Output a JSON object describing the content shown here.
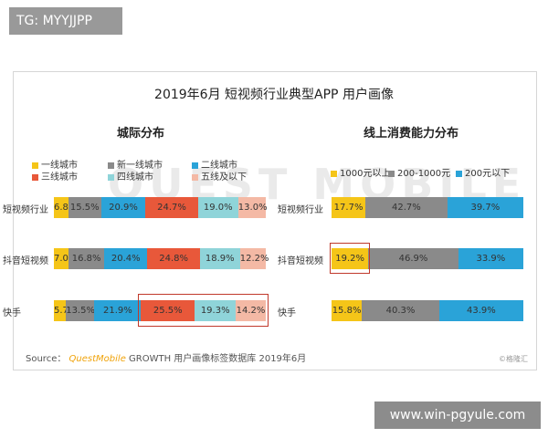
{
  "badge_text": "TG: MYYJJPP",
  "main_title": "2019年6月 短视频行业典型APP 用户画像",
  "watermark": "QUEST MOBILE",
  "source": {
    "label": "Source：",
    "brand": "QuestMobile",
    "rest": "GROWTH 用户画像标签数据库 2019年6月"
  },
  "credit": "©格隆汇",
  "footer_url": "www.win-pgyule.com",
  "colors": {
    "yellow": "#f5c518",
    "gray": "#8a8a8a",
    "blue": "#2aa3d8",
    "red": "#e8583a",
    "teal": "#8fd4d9",
    "pink": "#f4b9a5"
  },
  "chart_data": [
    {
      "type": "bar",
      "stacked": true,
      "orientation": "horizontal",
      "title": "城际分布",
      "categories": [
        "短视频行业",
        "抖音短视频",
        "快手"
      ],
      "series": [
        {
          "name": "一线城市",
          "color": "#f5c518",
          "values": [
            6.8,
            7.0,
            5.7
          ],
          "labels": [
            "6.8%",
            "7.0%",
            "5.7%"
          ]
        },
        {
          "name": "新一线城市",
          "color": "#8a8a8a",
          "values": [
            15.5,
            16.8,
            13.5
          ],
          "labels": [
            "15.5%",
            "16.8%",
            "13.5%"
          ]
        },
        {
          "name": "二线城市",
          "color": "#2aa3d8",
          "values": [
            20.9,
            20.4,
            21.9
          ],
          "labels": [
            "20.9%",
            "20.4%",
            "21.9%"
          ]
        },
        {
          "name": "三线城市",
          "color": "#e8583a",
          "values": [
            24.7,
            24.8,
            25.5
          ],
          "labels": [
            "24.7%",
            "24.8%",
            "25.5%"
          ]
        },
        {
          "name": "四线城市",
          "color": "#8fd4d9",
          "values": [
            19.0,
            18.9,
            19.3
          ],
          "labels": [
            "19.0%",
            "18.9%",
            "19.3%"
          ]
        },
        {
          "name": "五线及以下",
          "color": "#f4b9a5",
          "values": [
            13.0,
            12.2,
            14.2
          ],
          "labels": [
            "13.0%",
            "12.2%",
            "14.2%"
          ]
        }
      ],
      "xlim": [
        0,
        100
      ]
    },
    {
      "type": "bar",
      "stacked": true,
      "orientation": "horizontal",
      "title": "线上消费能力分布",
      "categories": [
        "短视频行业",
        "抖音短视频",
        "快手"
      ],
      "series": [
        {
          "name": "1000元以上",
          "color": "#f5c518",
          "values": [
            17.7,
            19.2,
            15.8
          ],
          "labels": [
            "17.7%",
            "19.2%",
            "15.8%"
          ]
        },
        {
          "name": "200-1000元",
          "color": "#8a8a8a",
          "values": [
            42.7,
            46.9,
            40.3
          ],
          "labels": [
            "42.7%",
            "46.9%",
            "40.3%"
          ]
        },
        {
          "name": "200元以下",
          "color": "#2aa3d8",
          "values": [
            39.7,
            33.9,
            43.9
          ],
          "labels": [
            "39.7%",
            "33.9%",
            "43.9%"
          ]
        }
      ],
      "xlim": [
        0,
        100
      ]
    }
  ]
}
